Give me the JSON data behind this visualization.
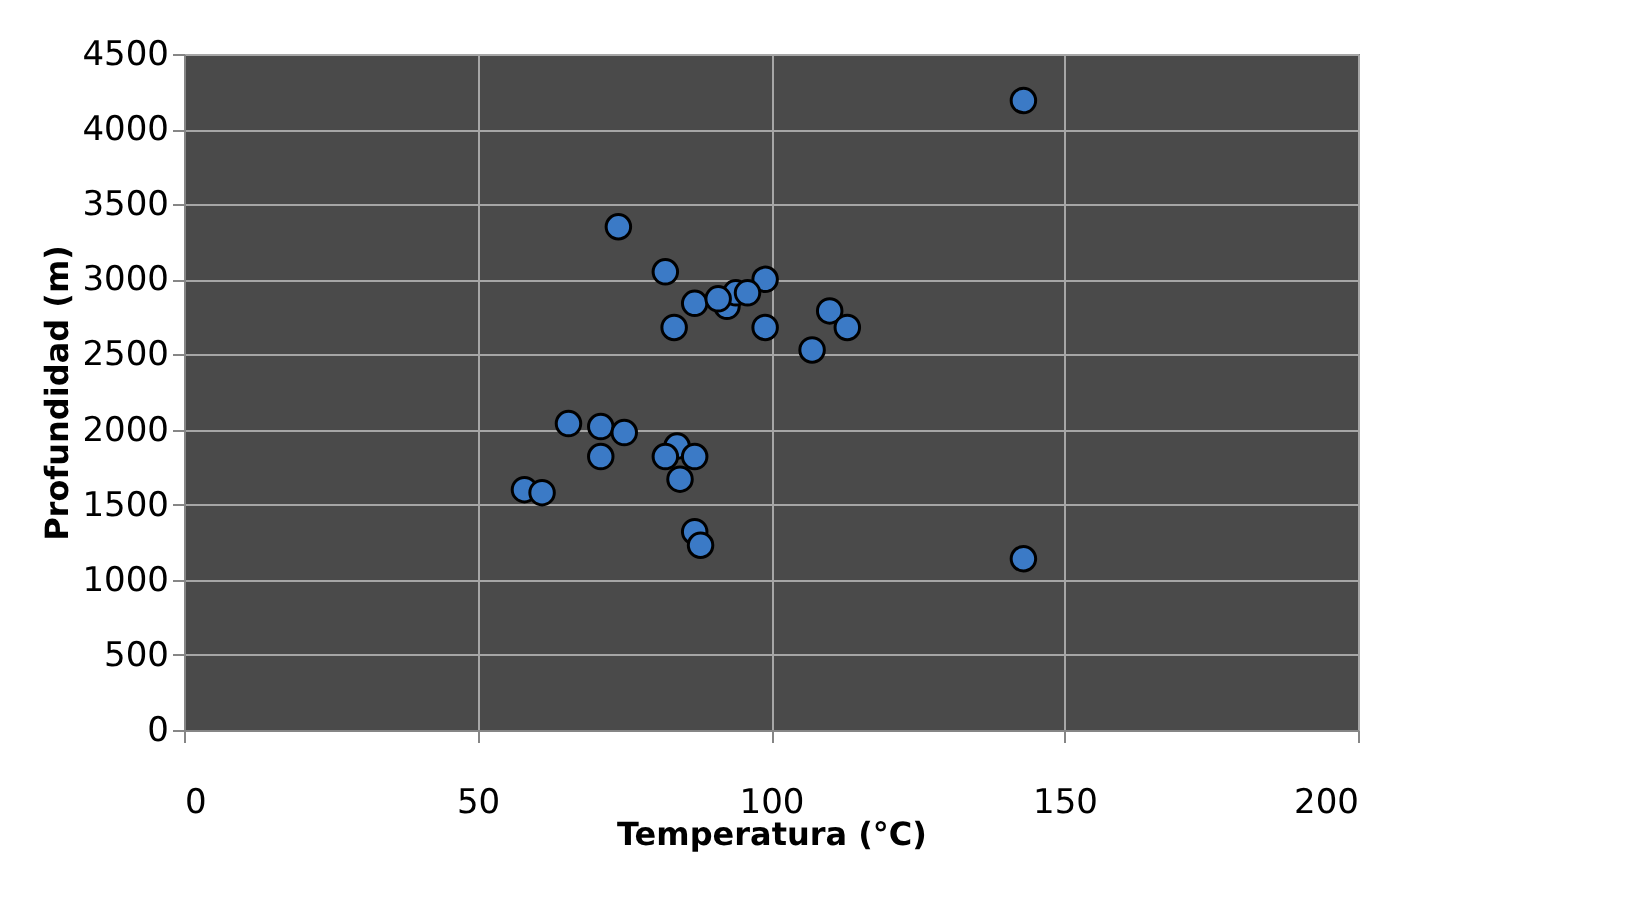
{
  "chart_data": {
    "type": "scatter",
    "xlabel": "Temperatura (°C)",
    "ylabel": "Profundidad (m)",
    "x": [
      74,
      82,
      99,
      87,
      92.5,
      94,
      96,
      91,
      83.5,
      99,
      110,
      113,
      107,
      143,
      143,
      65.5,
      71,
      75,
      71,
      84,
      82,
      87,
      84.5,
      58,
      61,
      87,
      88
    ],
    "series": [
      {
        "color": "#3b7ac6",
        "values": [
          3350,
          3050,
          3000,
          2840,
          2820,
          2910,
          2910,
          2870,
          2680,
          2680,
          2790,
          2680,
          2530,
          4190,
          1140,
          2040,
          2020,
          1980,
          1820,
          1890,
          1820,
          1820,
          1670,
          1600,
          1580,
          1320,
          1230
        ]
      }
    ],
    "xlim": [
      0,
      200
    ],
    "xticks": [
      0,
      50,
      100,
      150,
      200
    ],
    "ylim": [
      0,
      4500
    ],
    "yticks": [
      0,
      500,
      1000,
      1500,
      2000,
      2500,
      3000,
      3500,
      4000,
      4500
    ],
    "grid": true,
    "marker": "circle",
    "legend": false
  }
}
